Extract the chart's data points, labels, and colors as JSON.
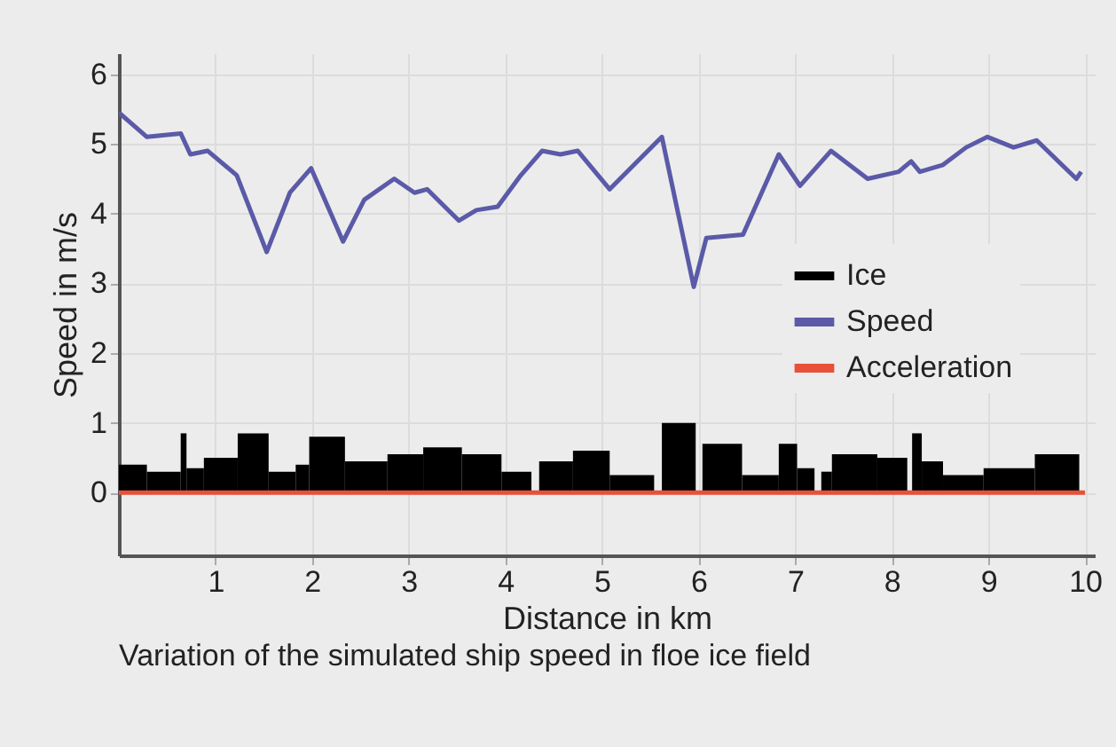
{
  "chart_data": {
    "type": "line",
    "xlabel": "Distance in km",
    "ylabel": "Speed in m/s",
    "xlim": [
      0,
      10.1
    ],
    "xticks": [
      1,
      2,
      3,
      4,
      5,
      6,
      7,
      8,
      9,
      10
    ],
    "ylim": [
      -0.9,
      6.3
    ],
    "yticks": [
      0,
      1,
      2,
      3,
      4,
      5,
      6
    ],
    "grid": true,
    "legend": "right",
    "annotations": [
      "Variation of the simulated ship speed in floe ice field"
    ],
    "series": [
      {
        "name": "Ice",
        "type": "histogram",
        "color": "#000000",
        "bins": [
          0,
          0.29,
          0.64,
          0.7,
          0.88,
          1.23,
          1.55,
          1.83,
          1.97,
          2.34,
          2.78,
          3.15,
          3.55,
          3.96,
          4.27,
          4.35,
          4.7,
          5.08,
          5.54,
          5.62,
          5.97,
          6.04,
          6.45,
          6.83,
          7.02,
          7.2,
          7.27,
          7.38,
          7.85,
          8.16,
          8.21,
          8.31,
          8.53,
          8.95,
          9.48,
          9.94
        ],
        "values": [
          0.4,
          0.3,
          0.85,
          0.35,
          0.5,
          0.85,
          0.3,
          0.4,
          0.8,
          0.45,
          0.55,
          0.65,
          0.55,
          0.3,
          0,
          0.45,
          0.6,
          0.25,
          0,
          1.0,
          0,
          0.7,
          0.25,
          0.7,
          0.35,
          0,
          0.3,
          0.55,
          0.5,
          0,
          0.85,
          0.45,
          0.25,
          0.35,
          0.55
        ]
      },
      {
        "name": "Speed",
        "color": "#5a5aa8",
        "x": [
          0,
          0.29,
          0.64,
          0.74,
          0.92,
          1.22,
          1.53,
          1.77,
          1.99,
          2.32,
          2.54,
          2.85,
          3.06,
          3.19,
          3.52,
          3.7,
          3.92,
          4.16,
          4.38,
          4.57,
          4.75,
          5.08,
          5.62,
          5.95,
          6.08,
          6.46,
          6.83,
          7.05,
          7.37,
          7.75,
          8.07,
          8.2,
          8.29,
          8.53,
          8.77,
          8.99,
          9.26,
          9.5,
          9.76,
          9.91,
          9.96
        ],
        "values": [
          5.45,
          5.1,
          5.15,
          4.85,
          4.9,
          4.55,
          3.45,
          4.3,
          4.65,
          3.6,
          4.2,
          4.5,
          4.3,
          4.35,
          3.9,
          4.05,
          4.1,
          4.55,
          4.9,
          4.85,
          4.9,
          4.35,
          5.1,
          2.95,
          3.65,
          3.7,
          4.85,
          4.4,
          4.9,
          4.5,
          4.6,
          4.75,
          4.6,
          4.7,
          4.95,
          5.1,
          4.95,
          5.05,
          4.7,
          4.5,
          4.6
        ]
      },
      {
        "name": "Acceleration",
        "color": "#e8503a",
        "x": [
          0,
          10
        ],
        "values": [
          0,
          0
        ]
      }
    ]
  }
}
